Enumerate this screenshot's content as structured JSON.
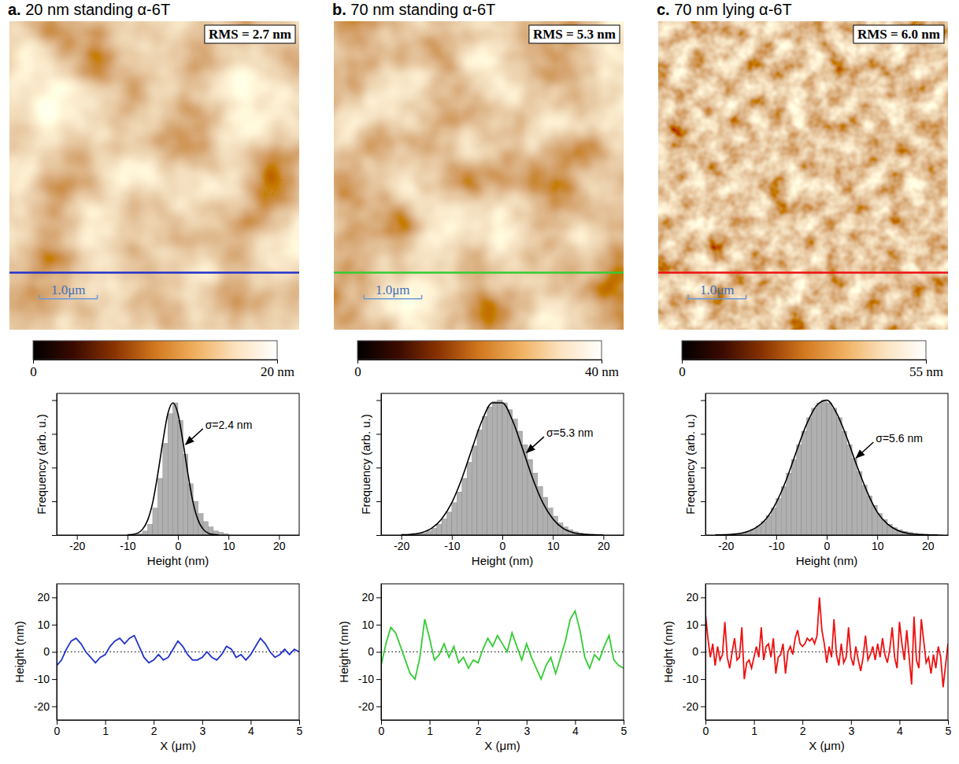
{
  "chart_data": [
    {
      "type": "image",
      "title": "a. 20 nm standing α-6T",
      "annotations": [
        {
          "text": "RMS = 2.7 nm"
        }
      ],
      "xlim": [
        0,
        5
      ],
      "scale_bar": {
        "label": "1.0μm",
        "value": 1
      },
      "color": "#2233cc",
      "color_bar": {
        "range": [
          0,
          20
        ],
        "ticks": [
          0,
          {
            "value": 20,
            "label": "20 nm"
          }
        ],
        "colors": [
          "#000000",
          "#3a0a00",
          "#8a3300",
          "#d2781e",
          "#f0b060",
          "#fbe3c0",
          "#ffffff"
        ]
      }
    },
    {
      "type": "histogram",
      "xlabel": "Height (nm)",
      "ylabel": "Frequency (arb. u.)",
      "bins": [
        -24,
        -23,
        -22,
        -21,
        -20,
        -19,
        -18,
        -17,
        -16,
        -15,
        -14,
        -13,
        -12,
        -11,
        -10,
        -9,
        -8,
        -7,
        -6,
        -5,
        -4,
        -3,
        -2,
        -1,
        0,
        1,
        2,
        3,
        4,
        5,
        6,
        7,
        8,
        9,
        10,
        11,
        12,
        13,
        14,
        15,
        16,
        17,
        18,
        19,
        20,
        21,
        22,
        23,
        24
      ],
      "counts": [
        0,
        0,
        0,
        0,
        0,
        0,
        0,
        0,
        0,
        0,
        0,
        0,
        0,
        0,
        0,
        0,
        0.01,
        0.03,
        0.08,
        0.2,
        0.42,
        0.68,
        0.9,
        0.98,
        0.85,
        0.6,
        0.38,
        0.25,
        0.16,
        0.1,
        0.06,
        0.03,
        0.02,
        0.01,
        0,
        0,
        0,
        0,
        0,
        0,
        0,
        0,
        0,
        0,
        0,
        0,
        0,
        0
      ],
      "color": "#b0b0b0",
      "fit": {
        "x": [
          -10,
          -9,
          -8,
          -7,
          -6,
          -5,
          -4,
          -3,
          -2,
          -1,
          0,
          1,
          2,
          3,
          4,
          5,
          6,
          7,
          8
        ],
        "values": [
          0.001,
          0.004,
          0.014,
          0.043,
          0.11,
          0.24,
          0.45,
          0.69,
          0.9,
          0.98,
          0.9,
          0.69,
          0.45,
          0.24,
          0.11,
          0.043,
          0.014,
          0.004,
          0.001
        ],
        "color": "#000000"
      },
      "annotations": [
        {
          "text": "σ=2.4 nm",
          "x": 1.2,
          "y": 0.66
        }
      ],
      "xlim": [
        -24,
        24
      ],
      "xticks": [
        -20,
        -10,
        0,
        10,
        20
      ],
      "ylim": [
        0,
        1.05
      ],
      "yticks": [
        0,
        0.25,
        0.5,
        0.75,
        1
      ],
      "tick_labels": "x"
    },
    {
      "type": "line",
      "xlabel": "X (μm)",
      "ylabel": "Height (nm)",
      "color": "#2233cc",
      "line_style": "solid",
      "x": [
        0,
        0.1,
        0.2,
        0.3,
        0.4,
        0.5,
        0.6,
        0.7,
        0.8,
        0.9,
        1,
        1.1,
        1.2,
        1.3,
        1.4,
        1.5,
        1.6,
        1.7,
        1.8,
        1.9,
        2,
        2.1,
        2.2,
        2.3,
        2.4,
        2.5,
        2.6,
        2.7,
        2.8,
        2.9,
        3,
        3.1,
        3.2,
        3.3,
        3.4,
        3.5,
        3.6,
        3.7,
        3.8,
        3.9,
        4,
        4.1,
        4.2,
        4.3,
        4.4,
        4.5,
        4.6,
        4.7,
        4.8,
        4.9,
        5
      ],
      "values": [
        -5,
        -3,
        1,
        4,
        5,
        3,
        0,
        -2,
        -4,
        -2,
        -1,
        2,
        4,
        5,
        3,
        5,
        6,
        2,
        -2,
        -4,
        -3,
        -1,
        -3,
        -2,
        1,
        4,
        2,
        -1,
        -3,
        -3,
        -2,
        0,
        -2,
        -3,
        -1,
        2,
        1,
        -2,
        -1,
        -3,
        -1,
        2,
        5,
        3,
        0,
        -2,
        -1,
        1,
        -1,
        1,
        0
      ],
      "baseline": 0,
      "xlim": [
        0,
        5
      ],
      "xticks": [
        0,
        1,
        2,
        3,
        4,
        5
      ],
      "ylim": [
        -25,
        25
      ],
      "yticks": [
        -20,
        -10,
        0,
        10,
        20
      ]
    },
    {
      "type": "image",
      "title": "b. 70 nm standing α-6T",
      "annotations": [
        {
          "text": "RMS = 5.3 nm"
        }
      ],
      "xlim": [
        0,
        5
      ],
      "scale_bar": {
        "label": "1.0μm",
        "value": 1
      },
      "color": "#33cc33",
      "color_bar": {
        "range": [
          0,
          40
        ],
        "ticks": [
          0,
          {
            "value": 40,
            "label": "40 nm"
          }
        ],
        "colors": [
          "#000000",
          "#3a0a00",
          "#8a3300",
          "#d2781e",
          "#f0b060",
          "#fbe3c0",
          "#ffffff"
        ]
      }
    },
    {
      "type": "histogram",
      "xlabel": "Height (nm)",
      "ylabel": "Frequency (arb. u.)",
      "bins": [
        -24,
        -23,
        -22,
        -21,
        -20,
        -19,
        -18,
        -17,
        -16,
        -15,
        -14,
        -13,
        -12,
        -11,
        -10,
        -9,
        -8,
        -7,
        -6,
        -5,
        -4,
        -3,
        -2,
        -1,
        0,
        1,
        2,
        3,
        4,
        5,
        6,
        7,
        8,
        9,
        10,
        11,
        12,
        13,
        14,
        15,
        16,
        17,
        18,
        19,
        20,
        21,
        22,
        23,
        24
      ],
      "counts": [
        0,
        0,
        0,
        0,
        0,
        0.003,
        0.006,
        0.01,
        0.018,
        0.03,
        0.05,
        0.08,
        0.12,
        0.17,
        0.24,
        0.32,
        0.42,
        0.54,
        0.66,
        0.78,
        0.88,
        0.95,
        0.99,
        1.0,
        0.98,
        0.93,
        0.86,
        0.77,
        0.67,
        0.56,
        0.46,
        0.36,
        0.28,
        0.2,
        0.14,
        0.09,
        0.06,
        0.04,
        0.025,
        0.015,
        0.01,
        0.006,
        0.003,
        0,
        0,
        0,
        0,
        0
      ],
      "color": "#b0b0b0",
      "fit": {
        "x": [
          -20,
          -18,
          -16,
          -14,
          -12,
          -10,
          -8,
          -6,
          -4,
          -2,
          0,
          2,
          4,
          6,
          8,
          10,
          12,
          14,
          16,
          18,
          20
        ],
        "values": [
          0.002,
          0.006,
          0.018,
          0.05,
          0.12,
          0.24,
          0.42,
          0.64,
          0.85,
          0.98,
          0.98,
          0.85,
          0.64,
          0.42,
          0.24,
          0.12,
          0.05,
          0.018,
          0.006,
          0.002,
          0
        ],
        "color": "#000000"
      },
      "annotations": [
        {
          "text": "σ=5.3 nm",
          "x": 4.5,
          "y": 0.6
        }
      ],
      "xlim": [
        -24,
        24
      ],
      "xticks": [
        -20,
        -10,
        0,
        10,
        20
      ],
      "ylim": [
        0,
        1.05
      ],
      "yticks": [
        0,
        0.25,
        0.5,
        0.75,
        1
      ],
      "tick_labels": "x"
    },
    {
      "type": "line",
      "xlabel": "X (μm)",
      "ylabel": "Height (nm)",
      "color": "#33cc33",
      "line_style": "solid",
      "x": [
        0,
        0.1,
        0.2,
        0.3,
        0.4,
        0.5,
        0.6,
        0.7,
        0.8,
        0.9,
        1,
        1.1,
        1.2,
        1.3,
        1.4,
        1.5,
        1.6,
        1.7,
        1.8,
        1.9,
        2,
        2.1,
        2.2,
        2.3,
        2.4,
        2.5,
        2.6,
        2.7,
        2.8,
        2.9,
        3,
        3.1,
        3.2,
        3.3,
        3.4,
        3.5,
        3.6,
        3.7,
        3.8,
        3.9,
        4,
        4.1,
        4.2,
        4.3,
        4.4,
        4.5,
        4.6,
        4.7,
        4.8,
        4.9,
        5
      ],
      "values": [
        -5,
        3,
        9,
        7,
        2,
        -3,
        -8,
        -10,
        -2,
        12,
        5,
        -3,
        -1,
        3,
        -2,
        2,
        -4,
        -2,
        -6,
        -3,
        -4,
        1,
        5,
        2,
        6,
        3,
        0,
        7,
        2,
        -3,
        3,
        -2,
        -6,
        -10,
        -5,
        -2,
        -8,
        -2,
        4,
        12,
        15,
        8,
        -2,
        -6,
        -1,
        -3,
        2,
        6,
        -3,
        -5,
        -6
      ],
      "baseline": 0,
      "xlim": [
        0,
        5
      ],
      "xticks": [
        0,
        1,
        2,
        3,
        4,
        5
      ],
      "ylim": [
        -25,
        25
      ],
      "yticks": [
        -20,
        -10,
        0,
        10,
        20
      ]
    },
    {
      "type": "image",
      "title": "c. 70 nm lying α-6T",
      "annotations": [
        {
          "text": "RMS = 6.0 nm"
        }
      ],
      "xlim": [
        0,
        5
      ],
      "scale_bar": {
        "label": "1.0μm",
        "value": 1
      },
      "color": "#ee1111",
      "color_bar": {
        "range": [
          0,
          55
        ],
        "ticks": [
          0,
          {
            "value": 55,
            "label": "55 nm"
          }
        ],
        "colors": [
          "#000000",
          "#3a0a00",
          "#8a3300",
          "#d2781e",
          "#f0b060",
          "#fbe3c0",
          "#ffffff"
        ]
      }
    },
    {
      "type": "histogram",
      "xlabel": "Height (nm)",
      "ylabel": "Frequency (arb. u.)",
      "bins": [
        -24,
        -23,
        -22,
        -21,
        -20,
        -19,
        -18,
        -17,
        -16,
        -15,
        -14,
        -13,
        -12,
        -11,
        -10,
        -9,
        -8,
        -7,
        -6,
        -5,
        -4,
        -3,
        -2,
        -1,
        0,
        1,
        2,
        3,
        4,
        5,
        6,
        7,
        8,
        9,
        10,
        11,
        12,
        13,
        14,
        15,
        16,
        17,
        18,
        19,
        20,
        21,
        22,
        23,
        24
      ],
      "counts": [
        0,
        0,
        0.001,
        0.002,
        0.003,
        0.006,
        0.01,
        0.017,
        0.028,
        0.044,
        0.067,
        0.1,
        0.145,
        0.2,
        0.27,
        0.36,
        0.46,
        0.56,
        0.67,
        0.77,
        0.87,
        0.94,
        0.98,
        1.0,
        0.98,
        0.94,
        0.87,
        0.77,
        0.67,
        0.57,
        0.47,
        0.37,
        0.29,
        0.22,
        0.16,
        0.115,
        0.08,
        0.055,
        0.04,
        0.028,
        0.02,
        0.014,
        0.01,
        0.007,
        0.005,
        0.003,
        0.002,
        0
      ],
      "color": "#b0b0b0",
      "fit": {
        "x": [
          -22,
          -20,
          -18,
          -16,
          -14,
          -12,
          -10,
          -8,
          -6,
          -4,
          -2,
          0,
          2,
          4,
          6,
          8,
          10,
          12,
          14,
          16,
          18,
          20,
          22
        ],
        "values": [
          0.001,
          0.002,
          0.008,
          0.022,
          0.055,
          0.12,
          0.24,
          0.41,
          0.62,
          0.82,
          0.96,
          1.0,
          0.9,
          0.72,
          0.51,
          0.32,
          0.17,
          0.082,
          0.035,
          0.013,
          0.004,
          0.001,
          0
        ],
        "color": "#000000"
      },
      "annotations": [
        {
          "text": "σ=5.6 nm",
          "x": 5.5,
          "y": 0.56
        }
      ],
      "xlim": [
        -24,
        24
      ],
      "xticks": [
        -20,
        -10,
        0,
        10,
        20
      ],
      "ylim": [
        0,
        1.05
      ],
      "yticks": [
        0,
        0.25,
        0.5,
        0.75,
        1
      ],
      "tick_labels": "x"
    },
    {
      "type": "line",
      "xlabel": "X (μm)",
      "ylabel": "Height (nm)",
      "color": "#ee1111",
      "line_style": "solid",
      "x": [
        0,
        0.05,
        0.1,
        0.15,
        0.2,
        0.25,
        0.3,
        0.35,
        0.4,
        0.45,
        0.5,
        0.55,
        0.6,
        0.65,
        0.7,
        0.75,
        0.8,
        0.85,
        0.9,
        0.95,
        1,
        1.05,
        1.1,
        1.15,
        1.2,
        1.25,
        1.3,
        1.35,
        1.4,
        1.45,
        1.5,
        1.55,
        1.6,
        1.65,
        1.7,
        1.75,
        1.8,
        1.85,
        1.9,
        1.95,
        2,
        2.05,
        2.1,
        2.15,
        2.2,
        2.25,
        2.3,
        2.35,
        2.4,
        2.45,
        2.5,
        2.55,
        2.6,
        2.65,
        2.7,
        2.75,
        2.8,
        2.85,
        2.9,
        2.95,
        3,
        3.05,
        3.1,
        3.15,
        3.2,
        3.25,
        3.3,
        3.35,
        3.4,
        3.45,
        3.5,
        3.55,
        3.6,
        3.65,
        3.7,
        3.75,
        3.8,
        3.85,
        3.9,
        3.95,
        4,
        4.05,
        4.1,
        4.15,
        4.2,
        4.25,
        4.3,
        4.35,
        4.4,
        4.45,
        4.5,
        4.55,
        4.6,
        4.65,
        4.7,
        4.75,
        4.8,
        4.85,
        4.9,
        4.95,
        5
      ],
      "values": [
        14,
        5,
        -2,
        3,
        -5,
        2,
        -3,
        -1,
        11,
        -2,
        -6,
        0,
        5,
        -3,
        -2,
        9,
        -10,
        -4,
        -3,
        -6,
        -2,
        2,
        -2,
        9,
        -3,
        2,
        3,
        -2,
        5,
        -8,
        -2,
        -1,
        3,
        -8,
        0,
        2,
        -1,
        5,
        8,
        3,
        2,
        3,
        5,
        4,
        5,
        3,
        6,
        20,
        8,
        3,
        -4,
        2,
        -2,
        12,
        -1,
        -5,
        3,
        -4,
        -2,
        9,
        -2,
        -5,
        2,
        -3,
        -7,
        -2,
        6,
        -3,
        -1,
        2,
        -3,
        3,
        -2,
        5,
        -1,
        -4,
        1,
        9,
        -2,
        -6,
        11,
        3,
        -3,
        8,
        -2,
        -12,
        13,
        -3,
        -6,
        12,
        4,
        -4,
        -2,
        -8,
        -1,
        -6,
        2,
        -2,
        -13,
        -5,
        3
      ],
      "baseline": 0,
      "xlim": [
        0,
        5
      ],
      "xticks": [
        0,
        1,
        2,
        3,
        4,
        5
      ],
      "ylim": [
        -25,
        25
      ],
      "yticks": [
        -20,
        -10,
        0,
        10,
        20
      ]
    }
  ]
}
